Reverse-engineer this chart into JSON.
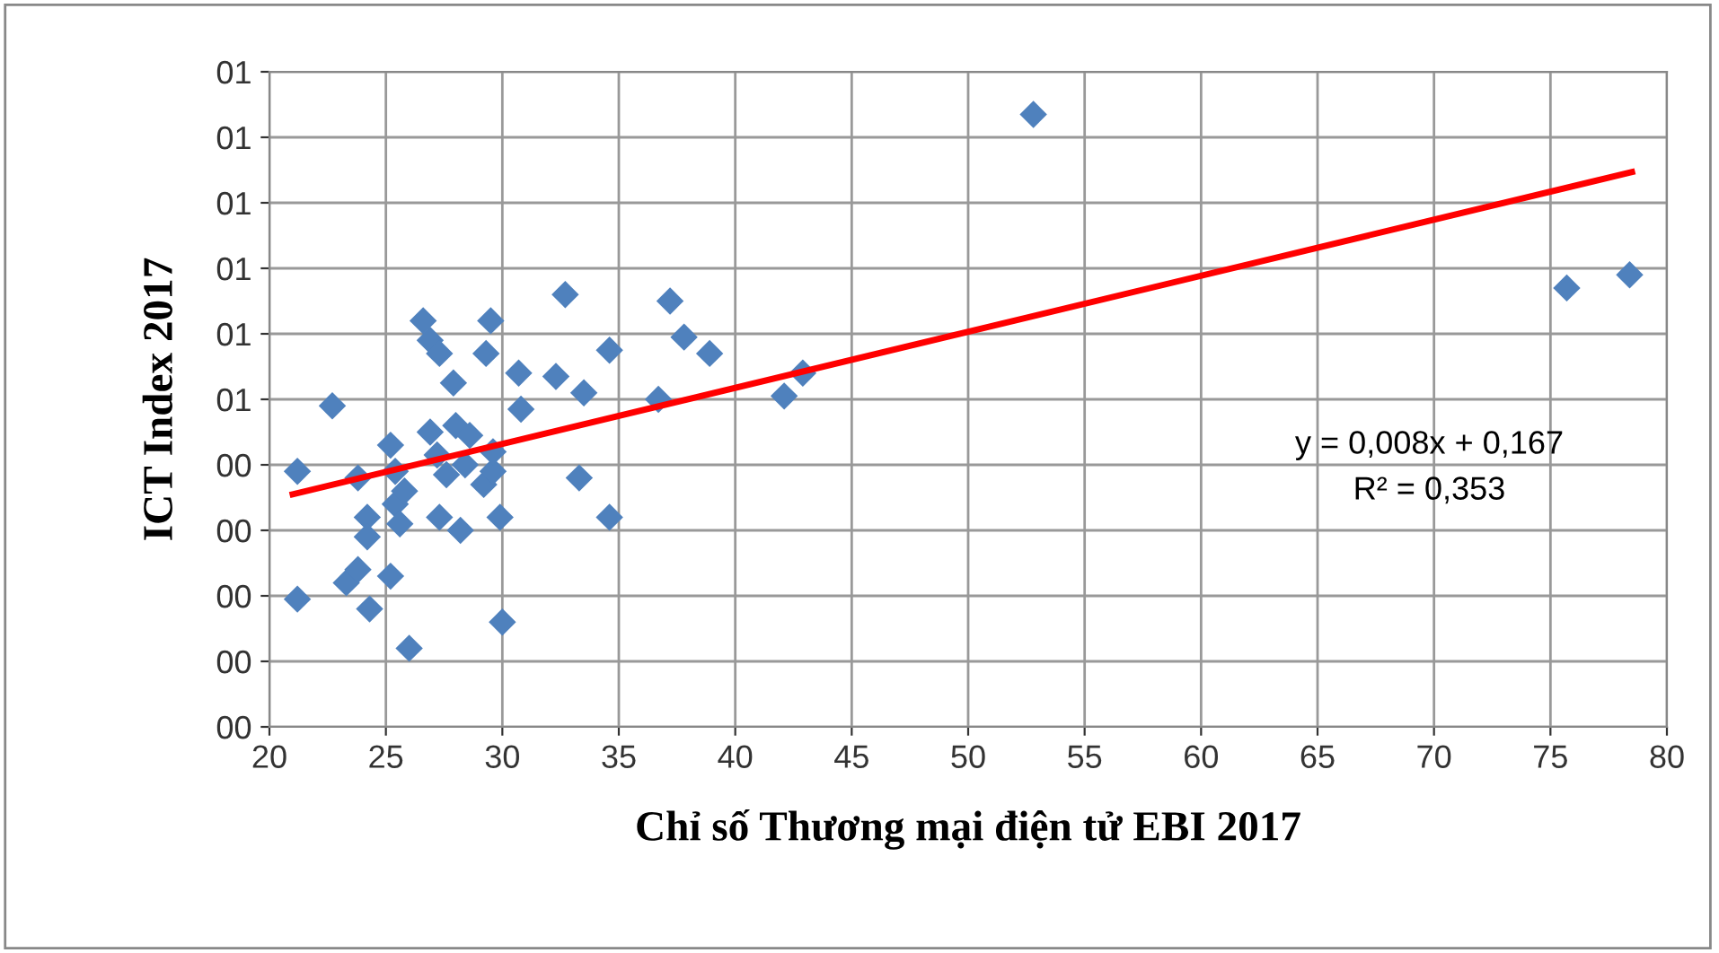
{
  "chart_data": {
    "type": "scatter",
    "xlabel": "Chỉ số Thương mại điện tử EBI 2017",
    "ylabel": "ICT Index 2017",
    "xlim": [
      20,
      80
    ],
    "xticks": [
      20,
      25,
      30,
      35,
      40,
      45,
      50,
      55,
      60,
      65,
      70,
      75,
      80
    ],
    "ylim": [
      0,
      1
    ],
    "yticks": [
      {
        "value": 0,
        "label": "00"
      },
      {
        "value": 0.1,
        "label": "00"
      },
      {
        "value": 0.2,
        "label": "00"
      },
      {
        "value": 0.3,
        "label": "00"
      },
      {
        "value": 0.4,
        "label": "00"
      },
      {
        "value": 0.5,
        "label": "01"
      },
      {
        "value": 0.6,
        "label": "01"
      },
      {
        "value": 0.7,
        "label": "01"
      },
      {
        "value": 0.8,
        "label": "01"
      },
      {
        "value": 0.9,
        "label": "01"
      },
      {
        "value": 1.0,
        "label": "01"
      }
    ],
    "grid": true,
    "marker": "diamond",
    "legend": false,
    "series": [
      {
        "color": "#4f81bd",
        "x": [
          21.2,
          21.2,
          22.7,
          23.8,
          23.3,
          23.8,
          24.2,
          24.2,
          24.3,
          25.2,
          25.2,
          25.4,
          25.4,
          25.6,
          25.8,
          26.0,
          26.6,
          26.9,
          26.9,
          27.3,
          27.2,
          27.3,
          27.6,
          27.9,
          28.0,
          28.2,
          28.4,
          28.6,
          29.2,
          29.3,
          29.5,
          29.6,
          29.6,
          29.9,
          30.0,
          30.7,
          30.8,
          32.3,
          32.7,
          33.5,
          33.3,
          34.6,
          34.6,
          36.7,
          37.2,
          37.8,
          38.9,
          42.1,
          42.9,
          52.8,
          75.7,
          78.4
        ],
        "values": [
          0.39,
          0.195,
          0.49,
          0.38,
          0.22,
          0.24,
          0.32,
          0.29,
          0.18,
          0.43,
          0.23,
          0.39,
          0.34,
          0.31,
          0.36,
          0.12,
          0.62,
          0.45,
          0.59,
          0.57,
          0.415,
          0.32,
          0.385,
          0.525,
          0.46,
          0.3,
          0.4,
          0.445,
          0.37,
          0.57,
          0.62,
          0.39,
          0.42,
          0.32,
          0.16,
          0.54,
          0.485,
          0.535,
          0.66,
          0.51,
          0.38,
          0.575,
          0.32,
          0.5,
          0.65,
          0.595,
          0.57,
          0.505,
          0.54,
          0.935,
          0.67,
          0.69
        ]
      },
      {
        "type": "line",
        "color": "#ff0000",
        "x": [
          21,
          78.5
        ],
        "values": [
          0.355,
          0.847
        ],
        "marker": "none"
      }
    ],
    "annotations": [
      "y = 0,008x + 0,167",
      "R² = 0,353"
    ]
  }
}
